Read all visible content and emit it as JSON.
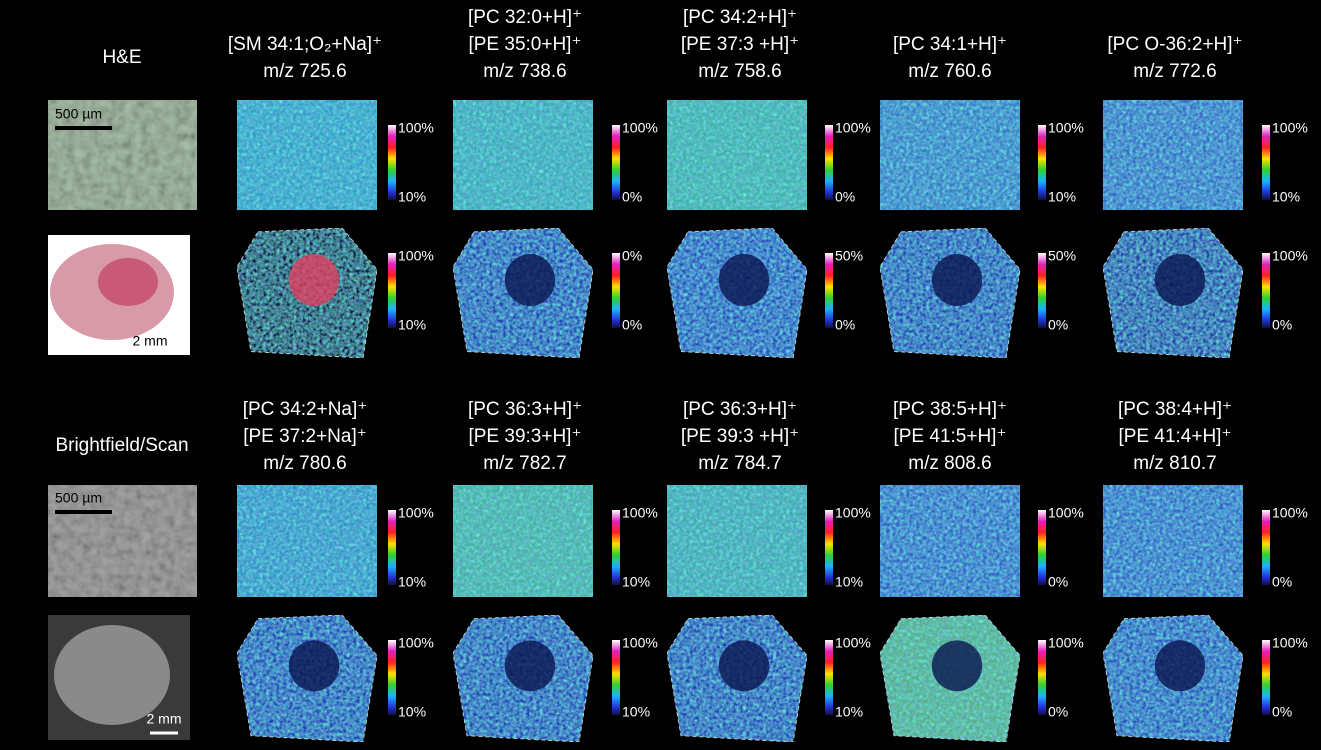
{
  "left_labels": [
    "H&E",
    "Brightfield/Scan"
  ],
  "scale_bars": [
    "500 µm",
    "2 mm",
    "500 µm",
    "2 mm"
  ],
  "panels": [
    {
      "title_lines": [
        "[SM 34:1;O₂+Na]⁺",
        "m/z  725.6"
      ],
      "colorbars": [
        {
          "max": "100%",
          "min": "10%"
        },
        {
          "max": "100%",
          "min": "10%"
        }
      ]
    },
    {
      "title_lines": [
        "[PC 32:0+H]⁺",
        "[PE 35:0+H]⁺",
        "m/z  738.6"
      ],
      "colorbars": [
        {
          "max": "100%",
          "min": "0%"
        },
        {
          "max": "0%",
          "min": "0%"
        }
      ]
    },
    {
      "title_lines": [
        "[PC 34:2+H]⁺",
        "[PE 37:3 +H]⁺",
        "m/z  758.6"
      ],
      "colorbars": [
        {
          "max": "100%",
          "min": "0%"
        },
        {
          "max": "50%",
          "min": "0%"
        }
      ]
    },
    {
      "title_lines": [
        "[PC 34:1+H]⁺",
        "m/z  760.6"
      ],
      "colorbars": [
        {
          "max": "100%",
          "min": "10%"
        },
        {
          "max": "50%",
          "min": "0%"
        }
      ]
    },
    {
      "title_lines": [
        "[PC O-36:2+H]⁺",
        "m/z  772.6"
      ],
      "colorbars": [
        {
          "max": "100%",
          "min": "10%"
        },
        {
          "max": "100%",
          "min": "0%"
        }
      ]
    },
    {
      "title_lines": [
        "[PC 34:2+Na]⁺",
        "[PE 37:2+Na]⁺",
        "m/z  780.6"
      ],
      "colorbars": [
        {
          "max": "100%",
          "min": "10%"
        },
        {
          "max": "100%",
          "min": "10%"
        }
      ]
    },
    {
      "title_lines": [
        "[PC 36:3+H]⁺",
        "[PE 39:3+H]⁺",
        "m/z  782.7"
      ],
      "colorbars": [
        {
          "max": "100%",
          "min": "10%"
        },
        {
          "max": "100%",
          "min": "10%"
        }
      ]
    },
    {
      "title_lines": [
        "[PC 36:3+H]⁺",
        "[PE 39:3 +H]⁺",
        "m/z  784.7"
      ],
      "colorbars": [
        {
          "max": "100%",
          "min": "10%"
        },
        {
          "max": "100%",
          "min": "10%"
        }
      ]
    },
    {
      "title_lines": [
        "[PC 38:5+H]⁺",
        "[PE 41:5+H]⁺",
        "m/z  808.6"
      ],
      "colorbars": [
        {
          "max": "100%",
          "min": "0%"
        },
        {
          "max": "100%",
          "min": "0%"
        }
      ]
    },
    {
      "title_lines": [
        "[PC 38:4+H]⁺",
        "[PE 41:4+H]⁺",
        "m/z  810.7"
      ],
      "colorbars": [
        {
          "max": "100%",
          "min": "0%"
        },
        {
          "max": "100%",
          "min": "0%"
        }
      ]
    }
  ]
}
